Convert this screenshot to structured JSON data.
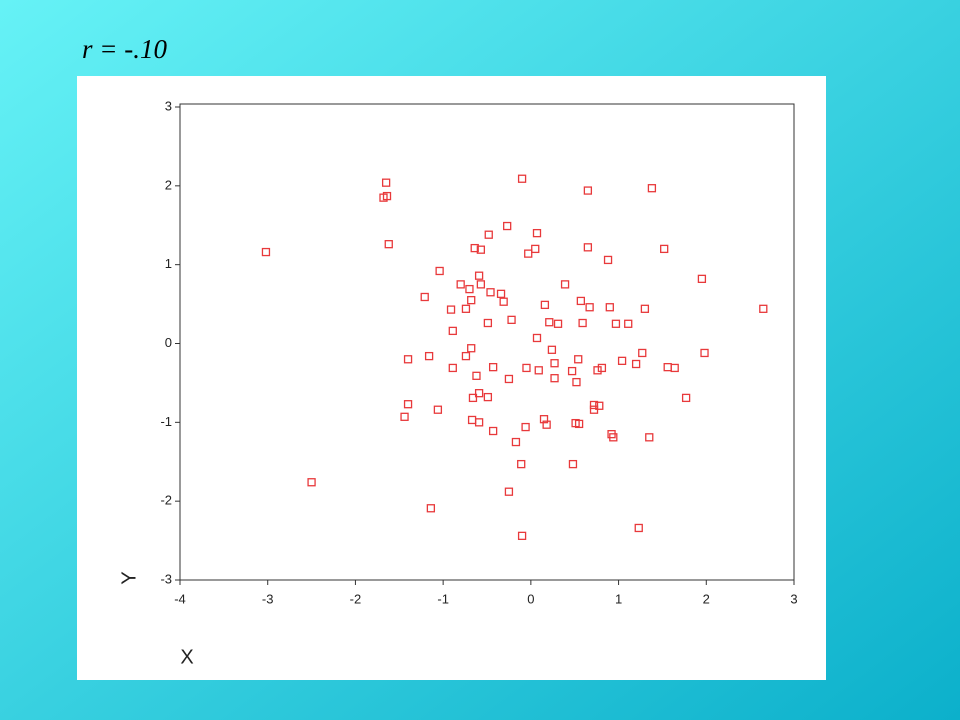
{
  "chart_data": {
    "type": "scatter",
    "title": "r = -.10",
    "xlabel": "X",
    "ylabel": "Y",
    "color": "#e8393b",
    "xlim": [
      -4,
      3
    ],
    "ylim": [
      -3,
      3
    ],
    "xticks": [
      -4,
      -3,
      -2,
      -1,
      0,
      1,
      2,
      3
    ],
    "yticks": [
      -3,
      -2,
      -1,
      0,
      1,
      2,
      3
    ],
    "x": [
      -3.02,
      -2.5,
      -1.65,
      -1.68,
      -1.64,
      -1.62,
      -1.14,
      -0.1,
      0.65,
      1.38,
      -0.27,
      -0.48,
      0.07,
      -0.64,
      -0.57,
      0.05,
      -0.03,
      0.65,
      1.52,
      0.88,
      -1.04,
      1.95,
      -0.59,
      -0.8,
      -0.57,
      0.39,
      -0.7,
      -0.46,
      -0.34,
      -1.21,
      -0.68,
      -0.31,
      0.57,
      0.16,
      0.67,
      0.9,
      1.3,
      2.65,
      -0.91,
      -0.74,
      -0.22,
      -0.49,
      0.21,
      0.31,
      0.59,
      0.97,
      1.11,
      -0.89,
      0.07,
      -0.68,
      0.24,
      -1.4,
      -1.16,
      -0.74,
      0.54,
      1.04,
      1.27,
      1.98,
      1.2,
      -0.89,
      -0.43,
      -0.05,
      0.09,
      0.27,
      0.47,
      0.81,
      0.76,
      1.56,
      1.64,
      -0.62,
      -0.25,
      0.27,
      0.52,
      -0.59,
      -0.66,
      -0.49,
      1.77,
      -1.4,
      0.72,
      0.78,
      0.72,
      -1.06,
      -1.44,
      -0.67,
      -0.59,
      0.15,
      0.18,
      0.51,
      0.55,
      -0.06,
      -0.43,
      0.92,
      0.94,
      1.35,
      -0.17,
      -0.11,
      0.48,
      -0.25,
      1.23,
      -0.1
    ],
    "y": [
      1.16,
      -1.76,
      2.04,
      1.85,
      1.87,
      1.26,
      -2.09,
      2.09,
      1.94,
      1.97,
      1.49,
      1.38,
      1.4,
      1.21,
      1.19,
      1.2,
      1.14,
      1.22,
      1.2,
      1.06,
      0.92,
      0.82,
      0.86,
      0.75,
      0.75,
      0.75,
      0.69,
      0.65,
      0.63,
      0.59,
      0.55,
      0.53,
      0.54,
      0.49,
      0.46,
      0.46,
      0.44,
      0.44,
      0.43,
      0.44,
      0.3,
      0.26,
      0.27,
      0.25,
      0.26,
      0.25,
      0.25,
      0.16,
      0.07,
      -0.06,
      -0.08,
      -0.2,
      -0.16,
      -0.16,
      -0.2,
      -0.22,
      -0.12,
      -0.12,
      -0.26,
      -0.31,
      -0.3,
      -0.31,
      -0.34,
      -0.25,
      -0.35,
      -0.31,
      -0.34,
      -0.3,
      -0.31,
      -0.41,
      -0.45,
      -0.44,
      -0.49,
      -0.63,
      -0.69,
      -0.68,
      -0.69,
      -0.77,
      -0.78,
      -0.79,
      -0.84,
      -0.84,
      -0.93,
      -0.97,
      -1.0,
      -0.96,
      -1.03,
      -1.01,
      -1.02,
      -1.06,
      -1.11,
      -1.15,
      -1.19,
      -1.19,
      -1.25,
      -1.53,
      -1.53,
      -1.88,
      -2.34,
      -2.44
    ]
  }
}
